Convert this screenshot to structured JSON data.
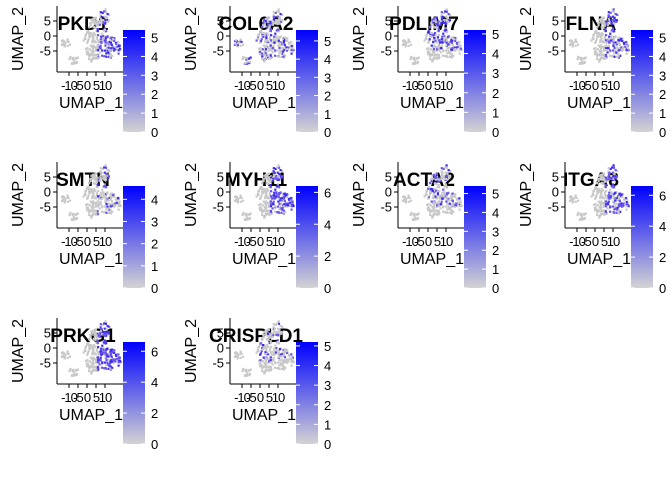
{
  "colors": {
    "low": "#d3d3d3",
    "high": "#0000ff",
    "cells": "#c8c8c8"
  },
  "chart_data": {
    "type": "scatter",
    "layout": "feature-plot-grid",
    "xlabel": "UMAP_1",
    "ylabel": "UMAP_2",
    "x_ticks": [
      "-10",
      "-5",
      "0",
      "5",
      "10"
    ],
    "y_ticks": [
      "5",
      "0",
      "-5"
    ],
    "legend_position": "right",
    "panels": [
      {
        "title": "PKD1",
        "cb_ticks": [
          "5",
          "4",
          "3",
          "2",
          "1",
          "0"
        ],
        "cb_max": 5.4,
        "expr": {
          "zone": "right",
          "density": 0.55
        }
      },
      {
        "title": "COL6A2",
        "cb_ticks": [
          "5",
          "4",
          "3",
          "2",
          "1",
          "0"
        ],
        "cb_max": 5.6,
        "expr": {
          "zone": "all",
          "density": 0.35
        }
      },
      {
        "title": "PDLIM7",
        "cb_ticks": [
          "5",
          "4",
          "3",
          "2",
          "1",
          "0"
        ],
        "cb_max": 5.2,
        "expr": {
          "zone": "upper",
          "density": 0.55
        }
      },
      {
        "title": "FLNA",
        "cb_ticks": [
          "5",
          "4",
          "3",
          "2",
          "1",
          "0"
        ],
        "cb_max": 5.4,
        "expr": {
          "zone": "right",
          "density": 0.5
        }
      },
      {
        "title": "SMTN",
        "cb_ticks": [
          "4",
          "3",
          "2",
          "1",
          "0"
        ],
        "cb_max": 4.6,
        "expr": {
          "zone": "right",
          "density": 0.25
        }
      },
      {
        "title": "MYH11",
        "cb_ticks": [
          "6",
          "4",
          "2",
          "0"
        ],
        "cb_max": 6.4,
        "expr": {
          "zone": "right",
          "density": 0.75
        }
      },
      {
        "title": "ACTA2",
        "cb_ticks": [
          "5",
          "4",
          "3",
          "2",
          "1",
          "0"
        ],
        "cb_max": 5.4,
        "expr": {
          "zone": "upper",
          "density": 0.35
        }
      },
      {
        "title": "ITGA8",
        "cb_ticks": [
          "6",
          "4",
          "2",
          "0"
        ],
        "cb_max": 6.6,
        "expr": {
          "zone": "right",
          "density": 0.7
        }
      },
      {
        "title": "PRKG1",
        "cb_ticks": [
          "6",
          "4",
          "2",
          "0"
        ],
        "cb_max": 6.6,
        "expr": {
          "zone": "right",
          "density": 0.9
        }
      },
      {
        "title": "CRISPLD1",
        "cb_ticks": [
          "5",
          "4",
          "3",
          "2",
          "1",
          "0"
        ],
        "cb_max": 5.2,
        "expr": {
          "zone": "upper",
          "density": 0.2
        }
      }
    ]
  }
}
